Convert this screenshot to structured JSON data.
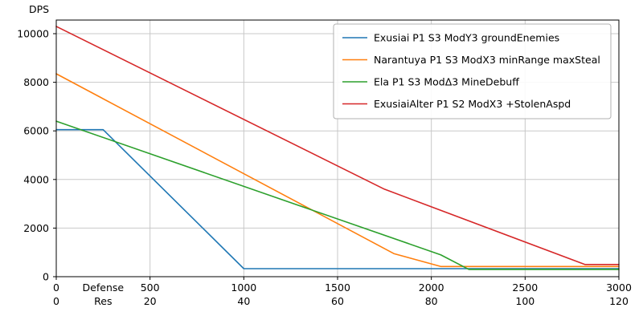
{
  "chart_data": {
    "type": "line",
    "title": "",
    "ylabel": "DPS",
    "xlabel_primary": "Defense",
    "xlabel_secondary": "Res",
    "xlim": [
      0,
      3000
    ],
    "ylim": [
      0,
      10560
    ],
    "grid": true,
    "legend_position": "upper right",
    "x_ticks": [
      0,
      500,
      1000,
      1500,
      2000,
      2500,
      3000
    ],
    "x_ticks_secondary": [
      0,
      20,
      40,
      60,
      80,
      100,
      120
    ],
    "y_ticks": [
      0,
      2000,
      4000,
      6000,
      8000,
      10000
    ],
    "series": [
      {
        "name": "Exusiai P1 S3 ModY3 groundEnemies",
        "color": "#1f77b4",
        "points": [
          [
            0,
            6050
          ],
          [
            250,
            6050
          ],
          [
            1000,
            330
          ],
          [
            3000,
            330
          ]
        ]
      },
      {
        "name": "Narantuya P1 S3 ModX3 minRange maxSteal",
        "color": "#ff7f0e",
        "points": [
          [
            0,
            8350
          ],
          [
            1800,
            950
          ],
          [
            2050,
            420
          ],
          [
            3000,
            420
          ]
        ]
      },
      {
        "name": "Ela P1 S3 ModΔ3 MineDebuff",
        "color": "#2ca02c",
        "points": [
          [
            0,
            6400
          ],
          [
            2050,
            900
          ],
          [
            2200,
            300
          ],
          [
            3000,
            300
          ]
        ]
      },
      {
        "name": "ExusiaiAlter P1 S2 ModX3 +StolenAspd",
        "color": "#d62728",
        "points": [
          [
            0,
            10300
          ],
          [
            1750,
            3600
          ],
          [
            2820,
            500
          ],
          [
            3000,
            500
          ]
        ]
      }
    ],
    "colors": {
      "grid": "#c8c8c8",
      "frame": "#000000",
      "legend_border": "#b0b0b0",
      "background": "#ffffff"
    }
  }
}
